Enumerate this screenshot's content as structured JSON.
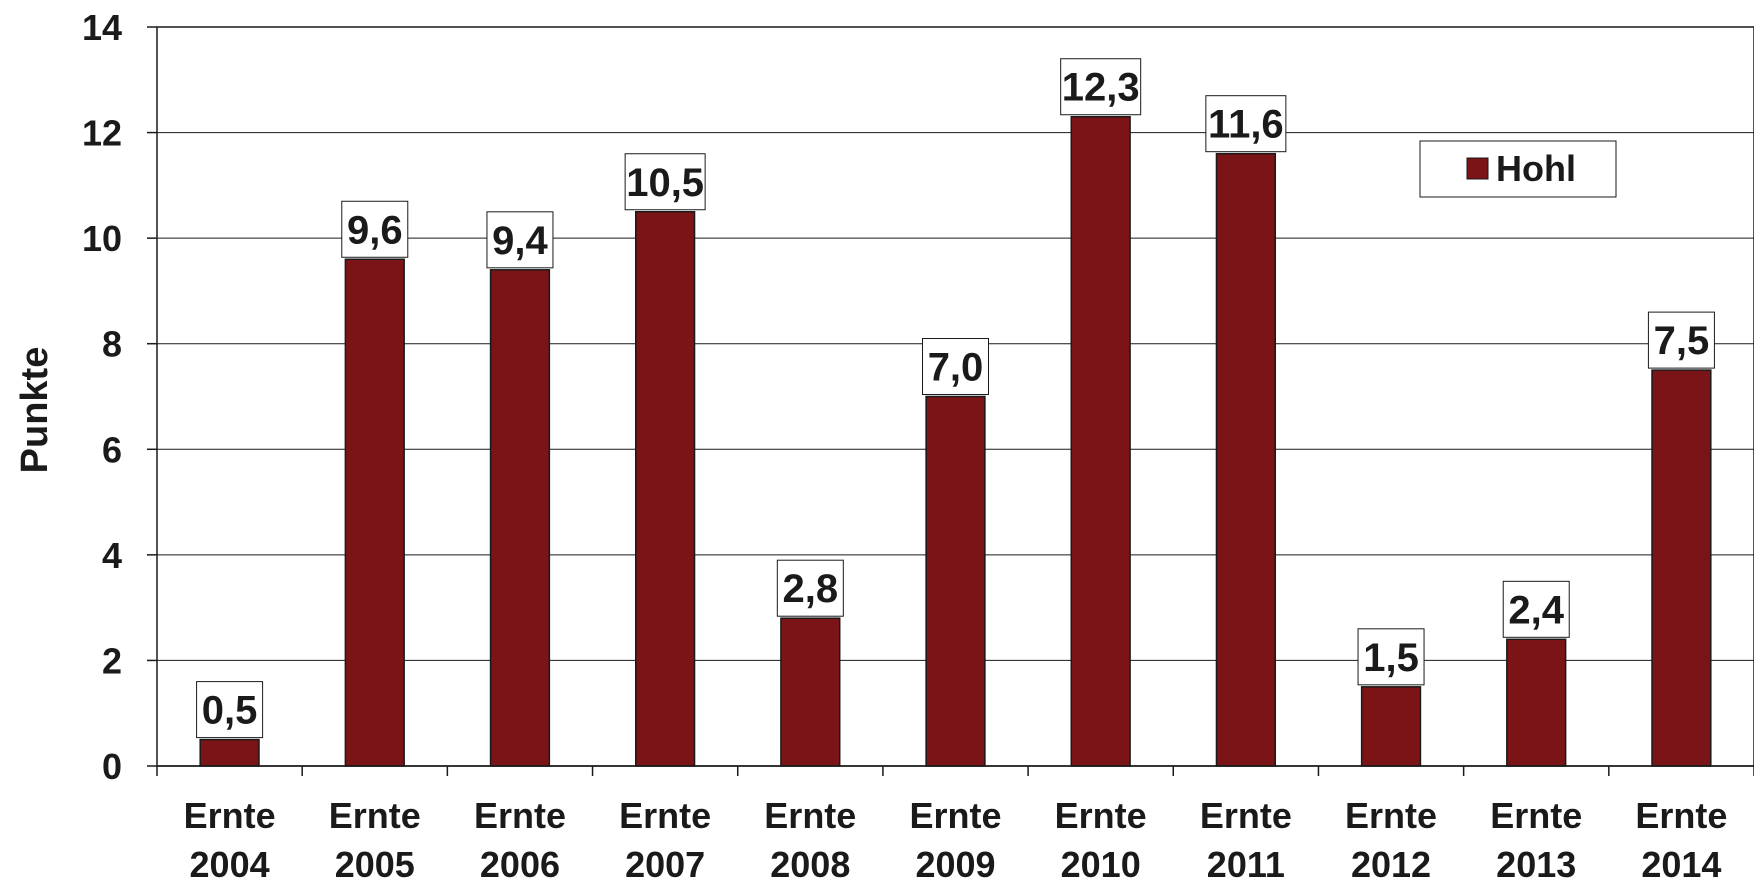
{
  "chart_data": {
    "type": "bar",
    "categories": [
      [
        "Ernte",
        "2004"
      ],
      [
        "Ernte",
        "2005"
      ],
      [
        "Ernte",
        "2006"
      ],
      [
        "Ernte",
        "2007"
      ],
      [
        "Ernte",
        "2008"
      ],
      [
        "Ernte",
        "2009"
      ],
      [
        "Ernte",
        "2010"
      ],
      [
        "Ernte",
        "2011"
      ],
      [
        "Ernte",
        "2012"
      ],
      [
        "Ernte",
        "2013"
      ],
      [
        "Ernte",
        "2014"
      ]
    ],
    "series": [
      {
        "name": "Hohl",
        "color": "#7b1416",
        "values": [
          0.5,
          9.6,
          9.4,
          10.5,
          2.8,
          7.0,
          12.3,
          11.6,
          1.5,
          2.4,
          7.5
        ],
        "data_labels": [
          "0,5",
          "9,6",
          "9,4",
          "10,5",
          "2,8",
          "7,0",
          "12,3",
          "11,6",
          "1,5",
          "2,4",
          "7,5"
        ]
      }
    ],
    "title": "",
    "xlabel": "",
    "ylabel": "Punkte",
    "ylim": [
      0,
      14
    ],
    "yticks": [
      0,
      2,
      4,
      6,
      8,
      10,
      12,
      14
    ],
    "grid": true,
    "legend_position": "top-right"
  }
}
